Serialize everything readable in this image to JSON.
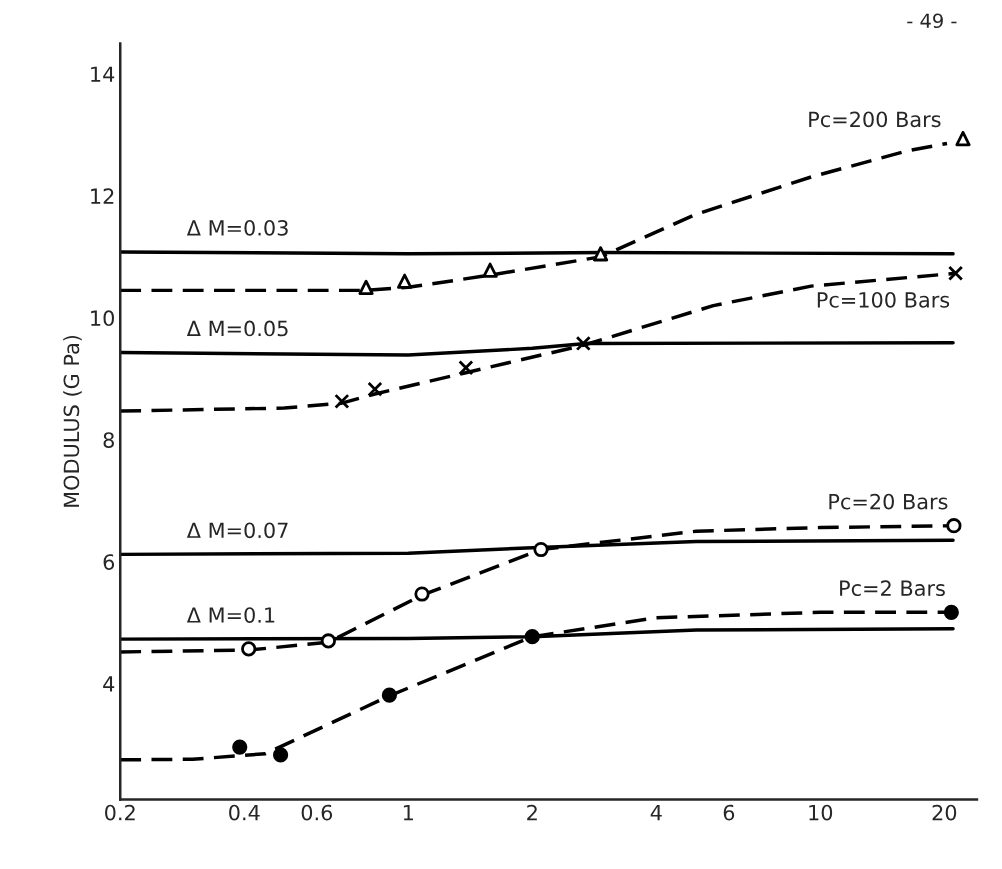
{
  "chart_data": {
    "type": "line",
    "ylabel": "MODULUS (G Pa)",
    "log": "x",
    "grid": false,
    "legend": false,
    "xlim": [
      0.2,
      24
    ],
    "ylim": [
      2.1,
      14.5
    ],
    "xticks": [
      0.2,
      0.4,
      0.6,
      1,
      2,
      4,
      6,
      10,
      20
    ],
    "yticks": [
      4,
      6,
      8,
      10,
      12,
      14
    ],
    "annotations": [
      "- 49 -"
    ],
    "series": [
      {
        "name": "Δ M=0.03",
        "type": "line",
        "line_style": "solid",
        "marker": "none",
        "color": "#000000",
        "x": [
          0.2,
          1,
          3,
          21
        ],
        "values": [
          11.08,
          11.05,
          11.07,
          11.05
        ]
      },
      {
        "name": "Δ M=0.05",
        "type": "line",
        "line_style": "solid",
        "marker": "none",
        "color": "#000000",
        "x": [
          0.2,
          1,
          2,
          2.7,
          21
        ],
        "values": [
          9.43,
          9.39,
          9.5,
          9.58,
          9.59
        ]
      },
      {
        "name": "Δ M=0.07",
        "type": "line",
        "line_style": "solid",
        "marker": "none",
        "color": "#000000",
        "x": [
          0.2,
          1,
          2,
          5,
          21
        ],
        "values": [
          6.12,
          6.14,
          6.23,
          6.33,
          6.35
        ]
      },
      {
        "name": "Δ M=0.1",
        "type": "line",
        "line_style": "solid",
        "marker": "none",
        "color": "#000000",
        "x": [
          0.2,
          1,
          2,
          5,
          21
        ],
        "values": [
          4.73,
          4.74,
          4.77,
          4.88,
          4.9
        ]
      },
      {
        "name": "Pc=200 Bars",
        "type": "line",
        "line_style": "dashed",
        "marker": "none",
        "color": "#000000",
        "x": [
          0.2,
          0.6,
          0.79,
          1,
          1.58,
          2.93,
          5,
          9.5,
          16.3,
          20.3
        ],
        "values": [
          10.45,
          10.45,
          10.45,
          10.5,
          10.7,
          11.0,
          11.7,
          12.31,
          12.74,
          12.86
        ]
      },
      {
        "type": "scatter",
        "marker": "triangle",
        "color": "#ffffff",
        "x": [
          0.79,
          0.98,
          1.58,
          2.93,
          22.2
        ],
        "values": [
          10.5,
          10.6,
          10.78,
          11.05,
          12.94
        ]
      },
      {
        "name": "Pc=100 Bars",
        "type": "line",
        "line_style": "dashed",
        "marker": "none",
        "color": "#000000",
        "x": [
          0.2,
          0.5,
          0.69,
          0.83,
          1.38,
          2.66,
          5.5,
          9.5,
          21.3
        ],
        "values": [
          8.47,
          8.52,
          8.6,
          8.75,
          9.1,
          9.55,
          10.2,
          10.52,
          10.73
        ]
      },
      {
        "type": "scatter",
        "marker": "cross",
        "color": "#000000",
        "x": [
          0.69,
          0.83,
          1.38,
          2.66,
          21.3
        ],
        "values": [
          8.63,
          8.83,
          9.18,
          9.58,
          10.73
        ]
      },
      {
        "name": "Pc=20 Bars",
        "type": "line",
        "line_style": "dashed",
        "marker": "none",
        "color": "#000000",
        "x": [
          0.2,
          0.41,
          0.64,
          1.08,
          2.1,
          5,
          10,
          21.1
        ],
        "values": [
          4.52,
          4.55,
          4.68,
          5.45,
          6.2,
          6.5,
          6.56,
          6.59
        ]
      },
      {
        "type": "scatter",
        "marker": "circle",
        "color": "#ffffff",
        "x": [
          0.41,
          0.64,
          1.08,
          2.1,
          21.1
        ],
        "values": [
          4.57,
          4.7,
          5.47,
          6.2,
          6.59
        ]
      },
      {
        "name": "Pc=2 Bars",
        "type": "line",
        "line_style": "dashed",
        "marker": "none",
        "color": "#000000",
        "x": [
          0.2,
          0.3,
          0.45,
          0.9,
          2,
          4,
          10,
          20.8
        ],
        "values": [
          2.75,
          2.76,
          2.85,
          3.8,
          4.77,
          5.08,
          5.17,
          5.17
        ]
      },
      {
        "type": "scatter",
        "marker": "circle",
        "color": "#000000",
        "x": [
          0.39,
          0.49,
          0.9,
          2.0,
          20.8
        ],
        "values": [
          2.96,
          2.83,
          3.81,
          4.77,
          5.17
        ]
      }
    ]
  }
}
